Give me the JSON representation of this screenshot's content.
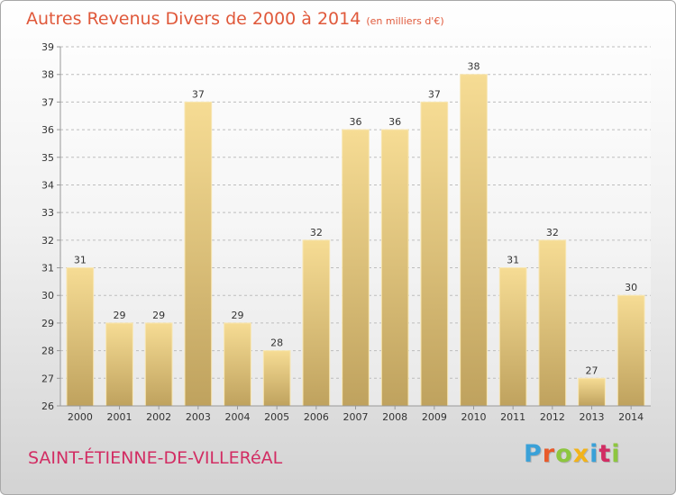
{
  "header": {
    "title": "Autres Revenus Divers de 2000 à 2014",
    "unit": "(en milliers d'€)"
  },
  "footer": {
    "city": "SAINT-ÉTIENNE-DE-VILLERéAL",
    "logo": "Proxiti"
  },
  "colors": {
    "title": "#e0593b",
    "city": "#d22d63",
    "bar_light": "#f6dc94",
    "bar_dark": "#bfa25e",
    "logo_letters": [
      "#3aa1d8",
      "#e85a2a",
      "#8dc63f",
      "#f2b31a",
      "#3aa1d8",
      "#d22d63",
      "#8dc63f"
    ]
  },
  "chart_data": {
    "type": "bar",
    "title": "Autres Revenus Divers de 2000 à 2014",
    "subtitle": "(en milliers d'€)",
    "xlabel": "",
    "ylabel": "",
    "categories": [
      "2000",
      "2001",
      "2002",
      "2003",
      "2004",
      "2005",
      "2006",
      "2007",
      "2008",
      "2009",
      "2010",
      "2011",
      "2012",
      "2013",
      "2014"
    ],
    "values": [
      31,
      29,
      29,
      37,
      29,
      28,
      32,
      36,
      36,
      37,
      38,
      31,
      32,
      27,
      30
    ],
    "ylim": [
      26,
      39
    ],
    "yticks": [
      26,
      27,
      28,
      29,
      30,
      31,
      32,
      33,
      34,
      35,
      36,
      37,
      38,
      39
    ],
    "grid": true,
    "legend": "none"
  }
}
